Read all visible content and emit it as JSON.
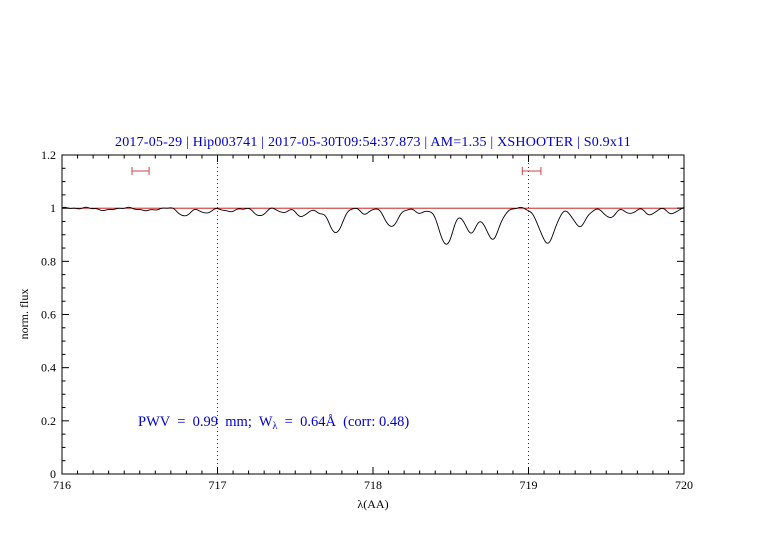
{
  "title": {
    "text": "2017-05-29 | Hip003741 | 2017-05-30T09:54:37.873 | AM=1.35 | XSHOOTER | S0.9x11",
    "color": "#0000cc"
  },
  "annotation": {
    "part1": "PWV  =  0.99  mm;  W",
    "sub": "λ",
    "part2": "  =  0.64Å  (corr: 0.48)",
    "color": "#0000cc"
  },
  "chart_data": {
    "type": "line",
    "title": "2017-05-29 | Hip003741 | 2017-05-30T09:54:37.873 | AM=1.35 | XSHOOTER | S0.9x11",
    "xlabel": "λ(AA)",
    "ylabel": "norm. flux",
    "xlim": [
      716,
      720
    ],
    "ylim": [
      0,
      1.2
    ],
    "x_major_ticks": [
      716,
      717,
      718,
      719,
      720
    ],
    "x_tick_labels": [
      "716",
      "717",
      "718",
      "719",
      "720"
    ],
    "x_minor_step": 0.1,
    "y_major_ticks": [
      0,
      0.2,
      0.4,
      0.6,
      0.8,
      1,
      1.2
    ],
    "y_tick_labels": [
      "0",
      "0.2",
      "0.4",
      "0.6",
      "0.8",
      "1",
      "1.2"
    ],
    "y_minor_step": 0.05,
    "grid": false,
    "dotted_vlines": [
      717,
      719
    ],
    "continuum": {
      "level": 1.0,
      "color": "#cc0000"
    },
    "range_markers": {
      "y": 1.14,
      "color": "#cc4444",
      "ranges": [
        [
          716.45,
          716.56
        ],
        [
          718.96,
          719.08
        ]
      ]
    },
    "spectrum_color": "#000000",
    "absorption_lines": [
      {
        "c": 716.28,
        "depth": 0.01,
        "sigma": 0.03
      },
      {
        "c": 716.55,
        "depth": 0.01,
        "sigma": 0.04
      },
      {
        "c": 716.79,
        "depth": 0.03,
        "sigma": 0.035
      },
      {
        "c": 716.93,
        "depth": 0.02,
        "sigma": 0.03
      },
      {
        "c": 717.08,
        "depth": 0.015,
        "sigma": 0.03
      },
      {
        "c": 717.27,
        "depth": 0.028,
        "sigma": 0.035
      },
      {
        "c": 717.42,
        "depth": 0.015,
        "sigma": 0.03
      },
      {
        "c": 717.54,
        "depth": 0.03,
        "sigma": 0.035
      },
      {
        "c": 717.65,
        "depth": 0.015,
        "sigma": 0.03
      },
      {
        "c": 717.76,
        "depth": 0.095,
        "sigma": 0.04
      },
      {
        "c": 717.95,
        "depth": 0.02,
        "sigma": 0.03
      },
      {
        "c": 718.12,
        "depth": 0.07,
        "sigma": 0.04
      },
      {
        "c": 718.3,
        "depth": 0.02,
        "sigma": 0.03
      },
      {
        "c": 718.47,
        "depth": 0.135,
        "sigma": 0.045
      },
      {
        "c": 718.63,
        "depth": 0.09,
        "sigma": 0.04
      },
      {
        "c": 718.77,
        "depth": 0.115,
        "sigma": 0.045
      },
      {
        "c": 719.12,
        "depth": 0.13,
        "sigma": 0.05
      },
      {
        "c": 719.33,
        "depth": 0.07,
        "sigma": 0.04
      },
      {
        "c": 719.52,
        "depth": 0.035,
        "sigma": 0.035
      },
      {
        "c": 719.65,
        "depth": 0.02,
        "sigma": 0.03
      },
      {
        "c": 719.78,
        "depth": 0.025,
        "sigma": 0.03
      },
      {
        "c": 719.92,
        "depth": 0.02,
        "sigma": 0.03
      }
    ]
  }
}
